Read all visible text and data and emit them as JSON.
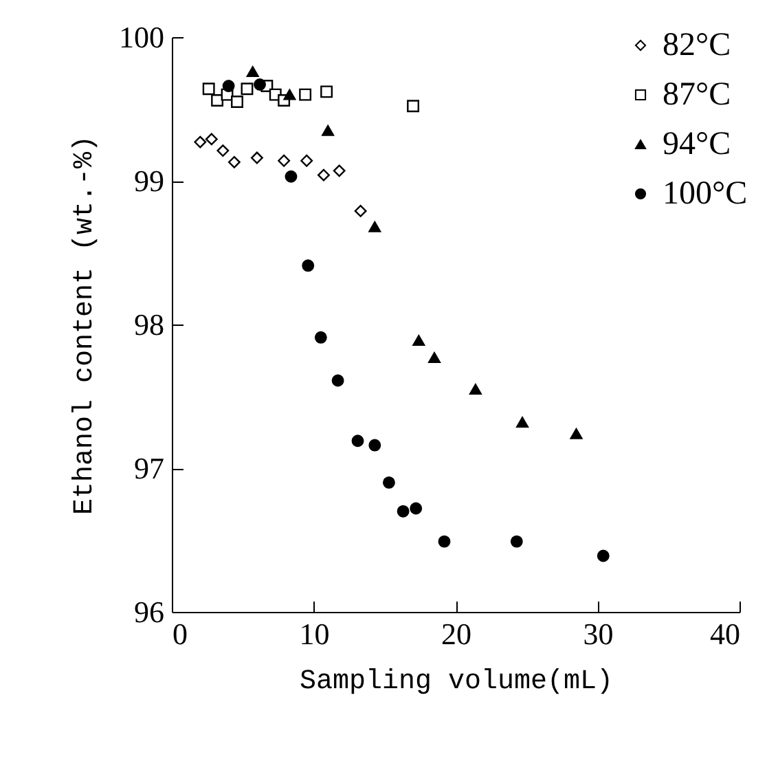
{
  "chart_data": {
    "type": "scatter",
    "xlabel": "Sampling volume(mL)",
    "ylabel": "Ethanol content (wt.-%)",
    "xlim": [
      0,
      40
    ],
    "ylim": [
      96,
      100
    ],
    "xticks": [
      0,
      10,
      20,
      30,
      40
    ],
    "yticks": [
      96,
      97,
      98,
      99,
      100
    ],
    "grid": false,
    "legend": "top right",
    "series": [
      {
        "name": "82°C",
        "color": "#000000",
        "marker": "diamond",
        "x": [
          2.0,
          2.8,
          3.6,
          4.4,
          6.0,
          7.9,
          9.5,
          10.7,
          11.8,
          13.3
        ],
        "values": [
          99.27,
          99.29,
          99.21,
          99.13,
          99.16,
          99.14,
          99.14,
          99.04,
          99.07,
          98.79
        ]
      },
      {
        "name": "87°C",
        "color": "#000000",
        "marker": "square",
        "x": [
          2.6,
          3.2,
          3.9,
          4.6,
          5.3,
          6.7,
          7.3,
          7.9,
          9.4,
          10.9,
          17.0
        ],
        "values": [
          99.64,
          99.56,
          99.6,
          99.55,
          99.64,
          99.66,
          99.6,
          99.56,
          99.6,
          99.62,
          99.52
        ]
      },
      {
        "name": "94°C",
        "color": "#000000",
        "marker": "triangle",
        "x": [
          5.7,
          8.3,
          11.0,
          14.3,
          17.4,
          18.5,
          21.4,
          24.7,
          28.5
        ],
        "values": [
          99.76,
          99.6,
          99.35,
          98.68,
          97.89,
          97.77,
          97.55,
          97.32,
          97.24
        ]
      },
      {
        "name": "100°C",
        "color": "#000000",
        "marker": "circle",
        "x": [
          4.0,
          6.2,
          8.4,
          9.6,
          10.5,
          11.7,
          13.1,
          14.3,
          15.3,
          16.3,
          17.2,
          19.2,
          24.3,
          30.4
        ],
        "values": [
          99.66,
          99.67,
          99.03,
          98.41,
          97.91,
          97.61,
          97.19,
          97.16,
          96.9,
          96.7,
          96.72,
          96.49,
          96.49,
          96.39
        ]
      }
    ]
  }
}
